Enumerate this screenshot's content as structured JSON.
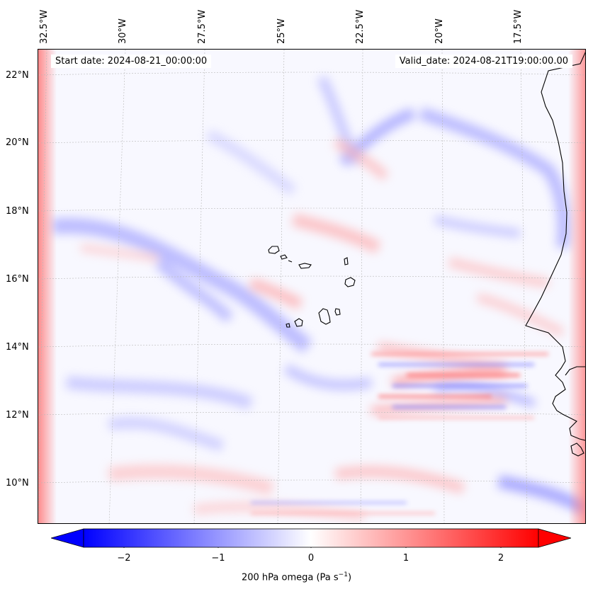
{
  "header": {
    "start_date": "Start date: 2024-08-21_00:00:00",
    "valid_date": "Valid_date: 2024-08-21T19:00:00.00"
  },
  "axes": {
    "lon_labels": [
      "32.5°W",
      "30°W",
      "27.5°W",
      "25°W",
      "22.5°W",
      "20°W",
      "17.5°W"
    ],
    "lat_labels": [
      "22°N",
      "20°N",
      "18°N",
      "16°N",
      "14°N",
      "12°N",
      "10°N"
    ]
  },
  "colorbar": {
    "ticks": [
      "−2",
      "−1",
      "0",
      "1",
      "2"
    ],
    "label_main": "200 hPa omega (Pa s",
    "label_sup": "−1",
    "label_end": ")",
    "min_color": "#0000ff",
    "mid_color": "#ffffff",
    "max_color": "#ff0000"
  }
}
